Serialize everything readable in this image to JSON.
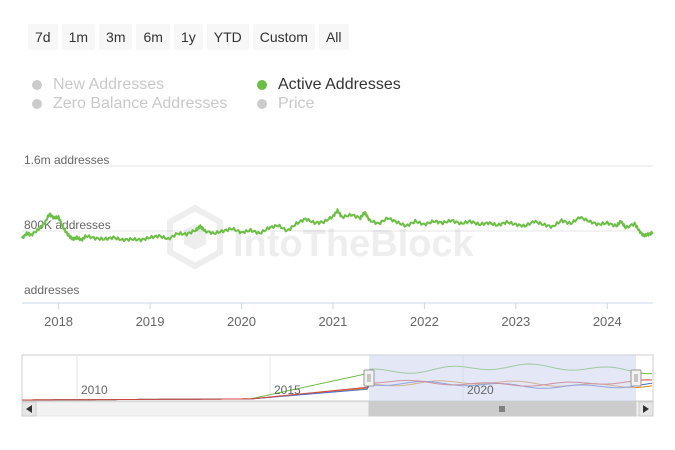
{
  "range_selector": {
    "buttons": [
      "7d",
      "1m",
      "3m",
      "6m",
      "1y",
      "YTD",
      "Custom",
      "All"
    ]
  },
  "legend": [
    {
      "label": "New Addresses",
      "active": false
    },
    {
      "label": "Active Addresses",
      "active": true
    },
    {
      "label": "Zero Balance Addresses",
      "active": false
    },
    {
      "label": "Price",
      "active": false
    }
  ],
  "watermark": "IntoTheBlock",
  "colors": {
    "active_line": "#6cbf45",
    "navigator_green": "#6cbf45",
    "navigator_orange": "#d98b2b",
    "navigator_blue": "#4a6fcf",
    "navigator_red": "#d0453f",
    "navigator_mask": "#ccd3ee"
  },
  "navigator": {
    "year_labels": [
      "2010",
      "2015",
      "2020"
    ],
    "selection": {
      "from": 2017.6,
      "to": 2024.5
    }
  },
  "chart_data": {
    "type": "line",
    "title": "",
    "xlabel": "",
    "ylabel": "",
    "y_tick_labels": [
      "addresses",
      "800K addresses",
      "1.6m addresses"
    ],
    "y_ticks": [
      0,
      800000,
      1600000
    ],
    "x_tick_labels": [
      "2018",
      "2019",
      "2020",
      "2021",
      "2022",
      "2023",
      "2024"
    ],
    "x_ticks": [
      2018,
      2019,
      2020,
      2021,
      2022,
      2023,
      2024
    ],
    "xlim": [
      2017.6,
      2024.5
    ],
    "ylim": [
      0,
      1600000
    ],
    "grid": "horizontal",
    "series": [
      {
        "name": "Active Addresses",
        "x": [
          2017.6,
          2017.65,
          2017.7,
          2017.78,
          2017.85,
          2017.9,
          2017.95,
          2018.0,
          2018.05,
          2018.1,
          2018.15,
          2018.2,
          2018.25,
          2018.3,
          2018.4,
          2018.5,
          2018.6,
          2018.7,
          2018.8,
          2018.9,
          2019.0,
          2019.1,
          2019.2,
          2019.3,
          2019.4,
          2019.5,
          2019.55,
          2019.6,
          2019.7,
          2019.8,
          2019.9,
          2020.0,
          2020.1,
          2020.2,
          2020.3,
          2020.4,
          2020.5,
          2020.6,
          2020.7,
          2020.8,
          2020.9,
          2021.0,
          2021.05,
          2021.1,
          2021.2,
          2021.3,
          2021.35,
          2021.4,
          2021.5,
          2021.6,
          2021.7,
          2021.8,
          2021.9,
          2022.0,
          2022.1,
          2022.2,
          2022.3,
          2022.4,
          2022.5,
          2022.6,
          2022.7,
          2022.8,
          2022.9,
          2023.0,
          2023.1,
          2023.2,
          2023.3,
          2023.4,
          2023.5,
          2023.6,
          2023.7,
          2023.8,
          2023.9,
          2024.0,
          2024.1,
          2024.15,
          2024.2,
          2024.3,
          2024.35,
          2024.4,
          2024.45,
          2024.5
        ],
        "y": [
          710000,
          770000,
          750000,
          820000,
          900000,
          1010000,
          960000,
          970000,
          840000,
          760000,
          700000,
          720000,
          690000,
          740000,
          710000,
          700000,
          720000,
          690000,
          700000,
          690000,
          720000,
          740000,
          700000,
          770000,
          760000,
          810000,
          860000,
          800000,
          770000,
          800000,
          830000,
          780000,
          810000,
          770000,
          840000,
          870000,
          800000,
          890000,
          950000,
          900000,
          910000,
          980000,
          1050000,
          970000,
          1000000,
          960000,
          1030000,
          930000,
          890000,
          960000,
          910000,
          860000,
          920000,
          880000,
          920000,
          900000,
          930000,
          890000,
          920000,
          880000,
          900000,
          870000,
          910000,
          880000,
          860000,
          920000,
          880000,
          850000,
          930000,
          890000,
          970000,
          920000,
          880000,
          900000,
          860000,
          920000,
          840000,
          890000,
          800000,
          740000,
          760000,
          780000
        ]
      }
    ]
  }
}
